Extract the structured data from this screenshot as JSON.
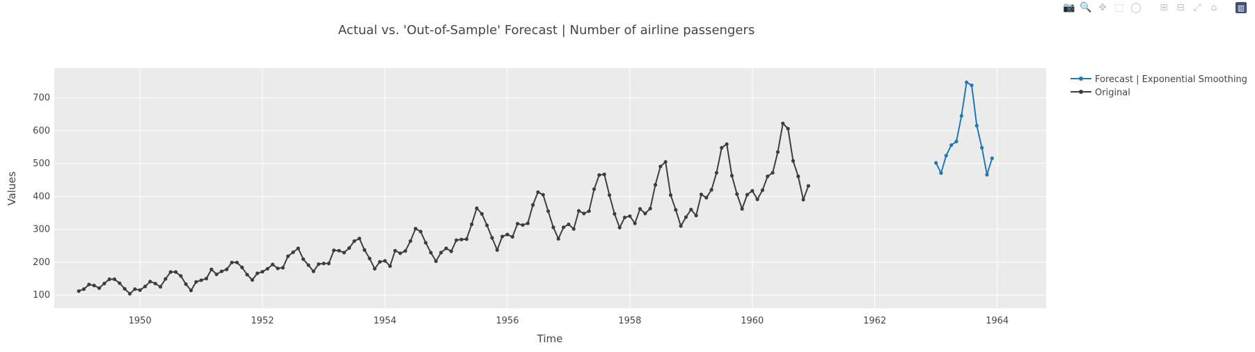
{
  "modebar": {
    "buttons": [
      {
        "name": "camera-icon",
        "glyph": "📷"
      },
      {
        "name": "zoom-icon",
        "glyph": "🔍"
      },
      {
        "name": "pan-icon",
        "glyph": "✥"
      },
      {
        "name": "box-select-icon",
        "glyph": "⬚"
      },
      {
        "name": "lasso-icon",
        "glyph": "◯"
      },
      {
        "name": "zoom-in-icon",
        "glyph": "⊞"
      },
      {
        "name": "zoom-out-icon",
        "glyph": "⊟"
      },
      {
        "name": "autoscale-icon",
        "glyph": "⤢"
      },
      {
        "name": "home-icon",
        "glyph": "⌂"
      },
      {
        "name": "plotly-logo-icon",
        "glyph": "▥"
      }
    ]
  },
  "chart_data": {
    "type": "line",
    "title": "Actual vs. 'Out-of-Sample' Forecast | Number of airline passengers",
    "xlabel": "Time",
    "ylabel": "Values",
    "xlim": [
      1948.6,
      1964.8
    ],
    "ylim": [
      60,
      790
    ],
    "xticks": [
      1950,
      1952,
      1954,
      1956,
      1958,
      1960,
      1962,
      1964
    ],
    "yticks": [
      100,
      200,
      300,
      400,
      500,
      600,
      700
    ],
    "grid": true,
    "legend_position": "top-right-outside",
    "background": "#ebebeb",
    "series": [
      {
        "name": "Forecast | Exponential Smoothing",
        "color": "#1f77b4",
        "start_year": 1963,
        "values": [
          502,
          471,
          524,
          556,
          567,
          645,
          747,
          738,
          615,
          548,
          466,
          516
        ]
      },
      {
        "name": "Original",
        "color": "#3d3d3d",
        "start_year": 1949,
        "values": [
          112,
          118,
          132,
          129,
          121,
          135,
          148,
          148,
          136,
          119,
          104,
          118,
          115,
          126,
          141,
          135,
          125,
          149,
          170,
          170,
          158,
          133,
          114,
          140,
          145,
          150,
          178,
          163,
          172,
          178,
          199,
          199,
          184,
          162,
          146,
          166,
          171,
          180,
          193,
          181,
          183,
          218,
          230,
          242,
          209,
          191,
          172,
          194,
          196,
          196,
          236,
          235,
          229,
          243,
          264,
          272,
          237,
          211,
          180,
          201,
          204,
          188,
          235,
          227,
          234,
          264,
          302,
          293,
          259,
          229,
          203,
          229,
          242,
          233,
          267,
          269,
          270,
          315,
          364,
          347,
          312,
          274,
          237,
          278,
          284,
          277,
          317,
          313,
          318,
          374,
          413,
          405,
          355,
          306,
          271,
          306,
          315,
          301,
          356,
          348,
          355,
          422,
          465,
          467,
          404,
          347,
          305,
          336,
          340,
          318,
          362,
          348,
          363,
          435,
          491,
          505,
          404,
          359,
          310,
          337,
          360,
          342,
          406,
          396,
          420,
          472,
          548,
          559,
          463,
          407,
          362,
          405,
          417,
          391,
          419,
          461,
          472,
          535,
          622,
          606,
          508,
          461,
          390,
          432
        ]
      }
    ]
  }
}
